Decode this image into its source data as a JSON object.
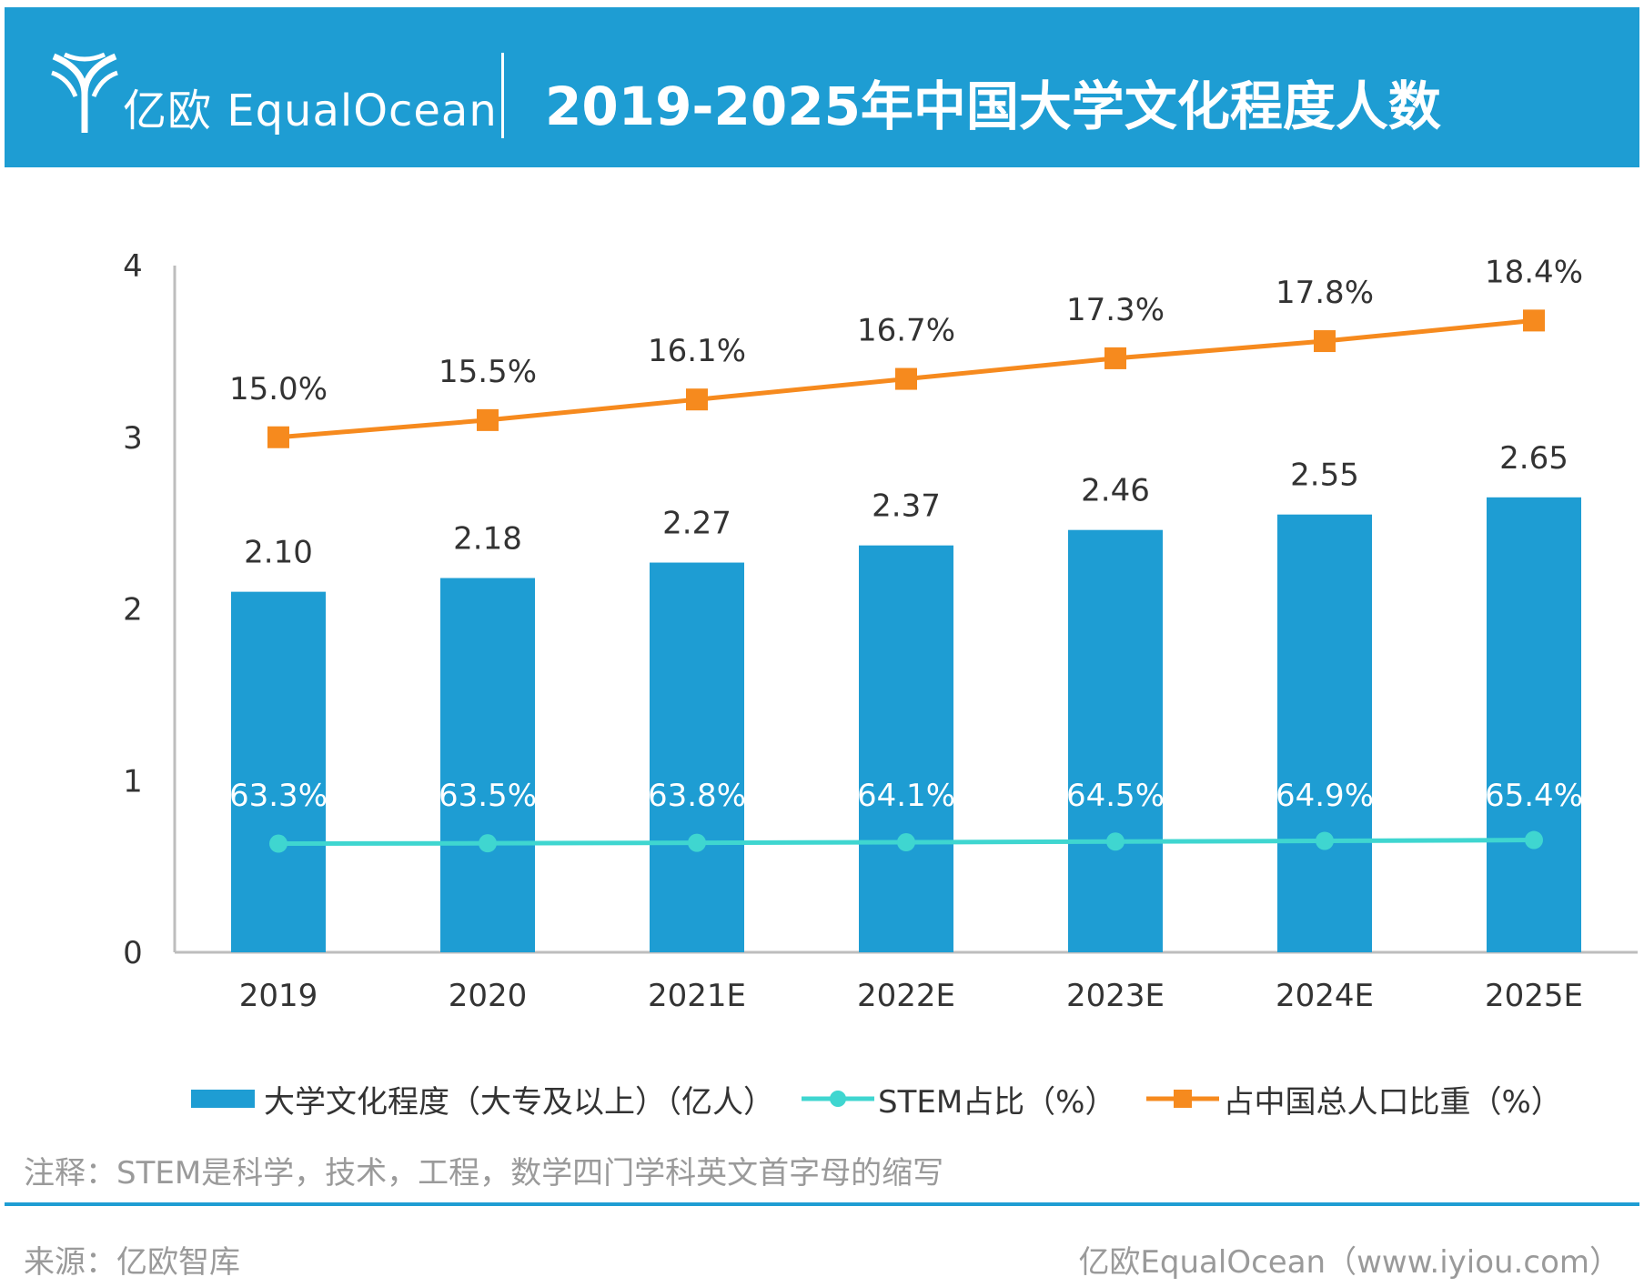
{
  "header": {
    "logo_text": "亿欧 EqualOcean",
    "title": "2019-2025年中国大学文化程度人数"
  },
  "chart_data": {
    "type": "bar",
    "categories": [
      "2019",
      "2020",
      "2021E",
      "2022E",
      "2023E",
      "2024E",
      "2025E"
    ],
    "ylim": [
      0,
      4
    ],
    "yticks": [
      "0",
      "1",
      "2",
      "3",
      "4"
    ],
    "grid": false,
    "legend_position": "bottom",
    "series": [
      {
        "name": "大学文化程度（大专及以上）（亿人）",
        "type": "bar",
        "color": "#1e9dd3",
        "values": [
          2.1,
          2.18,
          2.27,
          2.37,
          2.46,
          2.55,
          2.65
        ],
        "labels": [
          "2.10",
          "2.18",
          "2.27",
          "2.37",
          "2.46",
          "2.55",
          "2.65"
        ]
      },
      {
        "name": "STEM占比（%）",
        "type": "line",
        "marker": "circle",
        "color": "#3fd6d0",
        "values": [
          63.3,
          63.5,
          63.8,
          64.1,
          64.5,
          64.9,
          65.4
        ],
        "labels": [
          "63.3%",
          "63.5%",
          "63.8%",
          "64.1%",
          "64.5%",
          "64.9%",
          "65.4%"
        ]
      },
      {
        "name": "占中国总人口比重（%）",
        "type": "line",
        "marker": "square",
        "color": "#f68a1e",
        "values": [
          15.0,
          15.5,
          16.1,
          16.7,
          17.3,
          17.8,
          18.4
        ],
        "labels": [
          "15.0%",
          "15.5%",
          "16.1%",
          "16.7%",
          "17.3%",
          "17.8%",
          "18.4%"
        ]
      }
    ]
  },
  "legend": {
    "bar_label": "大学文化程度（大专及以上）（亿人）",
    "stem_label": "STEM占比（%）",
    "pop_label": "占中国总人口比重（%）"
  },
  "footer": {
    "note": "注释：STEM是科学，技术，工程，数学四门学科英文首字母的缩写",
    "source": "来源：亿欧智库",
    "credit": "亿欧EqualOcean（www.iyiou.com）"
  }
}
